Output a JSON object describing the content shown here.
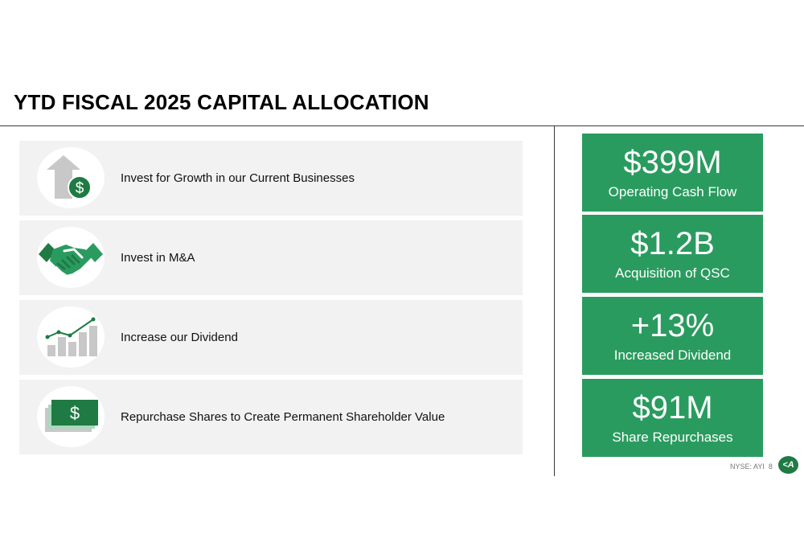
{
  "title": "YTD FISCAL 2025 CAPITAL ALLOCATION",
  "items": [
    {
      "label": "Invest for Growth in our Current Businesses",
      "icon": "growth-arrow-dollar-icon"
    },
    {
      "label": "Invest in M&A",
      "icon": "handshake-icon"
    },
    {
      "label": "Increase our Dividend",
      "icon": "rising-bar-chart-icon"
    },
    {
      "label": "Repurchase Shares to Create Permanent Shareholder Value",
      "icon": "dollar-bill-icon"
    }
  ],
  "stats": [
    {
      "value": "$399M",
      "caption": "Operating Cash Flow"
    },
    {
      "value": "$1.2B",
      "caption": "Acquisition of QSC"
    },
    {
      "value": "+13%",
      "caption": "Increased Dividend"
    },
    {
      "value": "$91M",
      "caption": "Share Repurchases"
    }
  ],
  "footer": {
    "ticker": "NYSE: AYI",
    "page": "8",
    "logo_text": "<A"
  },
  "colors": {
    "accent_green": "#2a9b5f",
    "dark_green": "#1f7a43",
    "row_gray": "#f2f2f2",
    "icon_gray": "#c8c8c8"
  }
}
